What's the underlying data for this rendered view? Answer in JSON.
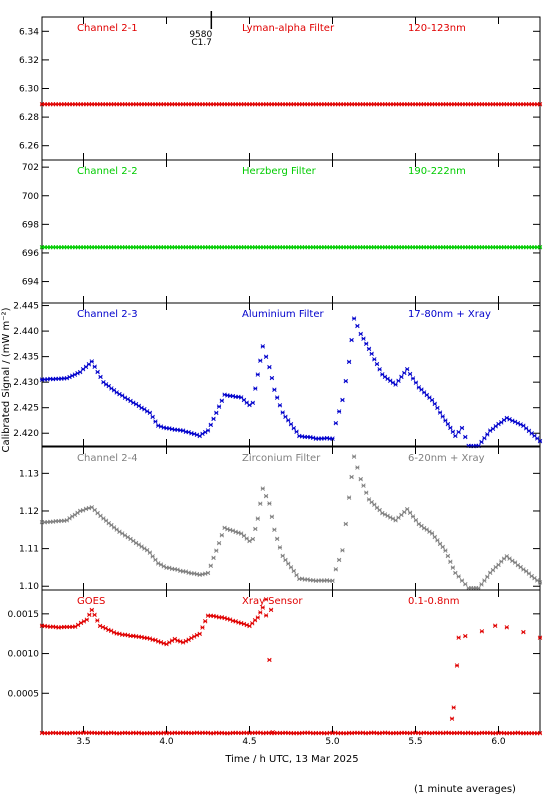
{
  "ylabel": "Calibrated Signal / (mW m⁻²)",
  "xlabel": "Time / h UTC, 13 Mar 2025",
  "footnote": "(1 minute averages)",
  "event_marker": {
    "x": 4.27,
    "labels": [
      "9580",
      "C1.7"
    ]
  },
  "x_axis": {
    "range": [
      3.25,
      6.25
    ],
    "ticks": [
      3.5,
      4.0,
      4.5,
      5.0,
      5.5,
      6.0
    ],
    "tick_labels": [
      "3.5",
      "4.0",
      "4.5",
      "5.0",
      "5.5",
      "6.0"
    ]
  },
  "chart_data": [
    {
      "type": "scatter",
      "channel": "Channel 2-1",
      "filter": "Lyman-alpha Filter",
      "band": "120-123nm",
      "color": "#e00000",
      "ylim": [
        6.25,
        6.35
      ],
      "yticks": [
        6.26,
        6.28,
        6.3,
        6.32,
        6.34
      ],
      "ytick_labels": [
        "6.26",
        "6.28",
        "6.30",
        "6.32",
        "6.34"
      ],
      "series": [
        {
          "x": [
            3.25,
            6.25
          ],
          "y": [
            6.289,
            6.289
          ]
        }
      ]
    },
    {
      "type": "scatter",
      "channel": "Channel 2-2",
      "filter": "Herzberg Filter",
      "band": "190-222nm",
      "color": "#00cc00",
      "ylim": [
        692.5,
        702.5
      ],
      "yticks": [
        694,
        696,
        698,
        700,
        702
      ],
      "ytick_labels": [
        "694",
        "696",
        "698",
        "700",
        "702"
      ],
      "series": [
        {
          "x": [
            3.25,
            6.25
          ],
          "y": [
            696.4,
            696.4
          ]
        }
      ]
    },
    {
      "type": "scatter",
      "channel": "Channel 2-3",
      "filter": "Aluminium Filter",
      "band": "17-80nm + Xray",
      "color": "#0000cc",
      "ylim": [
        2.4175,
        2.4455
      ],
      "yticks": [
        2.42,
        2.425,
        2.43,
        2.435,
        2.44,
        2.445
      ],
      "ytick_labels": [
        "2.420",
        "2.425",
        "2.430",
        "2.435",
        "2.440",
        "2.445"
      ],
      "series": [
        {
          "x": [
            3.25,
            3.4,
            3.48,
            3.55,
            3.62,
            3.7,
            3.8,
            3.9,
            3.95,
            4.0,
            4.1,
            4.2,
            4.25,
            4.35,
            4.45,
            4.5,
            4.52,
            4.55,
            4.58,
            4.62,
            4.65,
            4.7,
            4.8,
            4.9,
            5.0,
            5.02,
            5.06,
            5.1,
            5.13,
            5.17,
            5.22,
            5.3,
            5.38,
            5.45,
            5.52,
            5.6,
            5.68,
            5.74,
            5.78,
            5.82,
            5.88,
            5.95,
            6.05,
            6.15,
            6.25
          ],
          "y": [
            2.4305,
            2.4308,
            2.432,
            2.434,
            2.43,
            2.428,
            2.426,
            2.424,
            2.4215,
            2.421,
            2.4205,
            2.4195,
            2.4205,
            2.4275,
            2.427,
            2.4255,
            2.426,
            2.4315,
            2.437,
            2.433,
            2.4285,
            2.424,
            2.4195,
            2.419,
            2.419,
            2.422,
            2.4265,
            2.434,
            2.4425,
            2.4395,
            2.4365,
            2.4315,
            2.4295,
            2.4325,
            2.429,
            2.4265,
            2.4225,
            2.4195,
            2.421,
            2.4175,
            2.4175,
            2.4205,
            2.423,
            2.4215,
            2.4185
          ]
        }
      ]
    },
    {
      "type": "scatter",
      "channel": "Channel 2-4",
      "filter": "Zirconium Filter",
      "band": "6-20nm + Xray",
      "color": "#808080",
      "ylim": [
        1.099,
        1.137
      ],
      "yticks": [
        1.1,
        1.11,
        1.12,
        1.13
      ],
      "ytick_labels": [
        "1.10",
        "1.11",
        "1.12",
        "1.13"
      ],
      "series": [
        {
          "x": [
            3.25,
            3.4,
            3.48,
            3.55,
            3.62,
            3.7,
            3.8,
            3.9,
            3.95,
            4.0,
            4.1,
            4.2,
            4.25,
            4.35,
            4.45,
            4.5,
            4.52,
            4.55,
            4.58,
            4.62,
            4.65,
            4.7,
            4.8,
            4.9,
            5.0,
            5.02,
            5.06,
            5.1,
            5.13,
            5.17,
            5.22,
            5.3,
            5.38,
            5.45,
            5.52,
            5.6,
            5.68,
            5.74,
            5.78,
            5.82,
            5.88,
            5.95,
            6.05,
            6.15,
            6.25
          ],
          "y": [
            1.117,
            1.1175,
            1.12,
            1.121,
            1.118,
            1.115,
            1.112,
            1.109,
            1.106,
            1.105,
            1.104,
            1.103,
            1.1035,
            1.1155,
            1.114,
            1.112,
            1.1125,
            1.118,
            1.126,
            1.122,
            1.115,
            1.108,
            1.102,
            1.1015,
            1.1015,
            1.1045,
            1.1095,
            1.1235,
            1.1345,
            1.1285,
            1.123,
            1.1195,
            1.1175,
            1.1205,
            1.1165,
            1.114,
            1.1095,
            1.1035,
            1.1015,
            1.0995,
            1.0995,
            1.1035,
            1.108,
            1.1045,
            1.101
          ]
        }
      ]
    },
    {
      "type": "scatter",
      "channel": "GOES",
      "filter": "Xray Sensor",
      "band": "0.1-0.8nm",
      "color": "#e00000",
      "ylim": [
        0.0,
        0.0018
      ],
      "yticks": [
        0.0005,
        0.001,
        0.0015
      ],
      "ytick_labels": [
        "0.0005",
        "0.0010",
        "0.0015"
      ],
      "series": [
        {
          "x": [
            3.25,
            3.35,
            3.45,
            3.52,
            3.55,
            3.6,
            3.7,
            3.8,
            3.9,
            4.0,
            4.05,
            4.1,
            4.2,
            4.25,
            4.35,
            4.45,
            4.5,
            4.55,
            4.58,
            4.6
          ],
          "y": [
            0.00135,
            0.00133,
            0.00134,
            0.00143,
            0.00155,
            0.00135,
            0.00125,
            0.00122,
            0.00119,
            0.00112,
            0.00118,
            0.00114,
            0.00125,
            0.00148,
            0.00145,
            0.00138,
            0.00135,
            0.00145,
            0.00158,
            0.00168
          ]
        },
        {
          "x": [
            3.25,
            6.25
          ],
          "y": [
            0.0,
            0.0
          ]
        }
      ]
    }
  ]
}
